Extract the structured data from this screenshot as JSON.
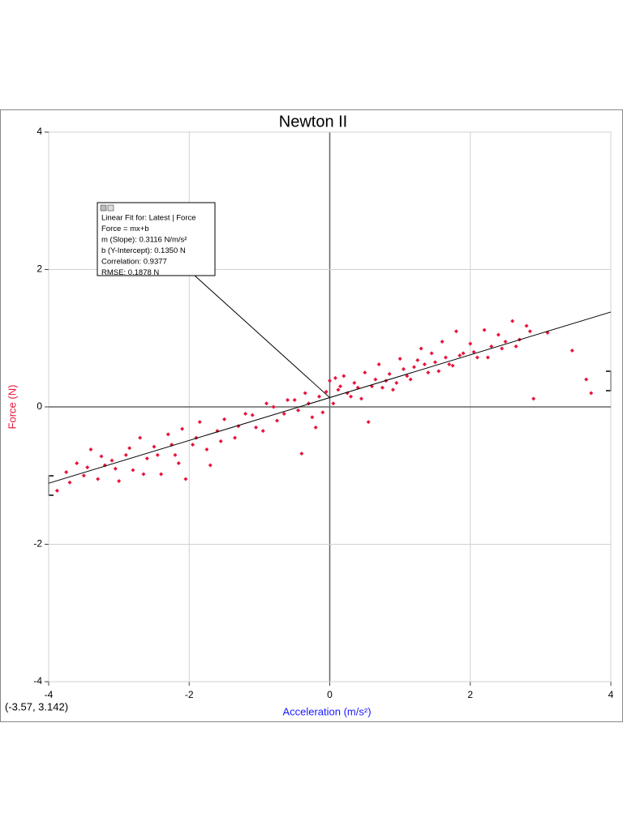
{
  "chart_data": {
    "type": "scatter",
    "title": "Newton II",
    "x_label": "Acceleration (m/s²)",
    "y_label": "Force (N)",
    "x": [
      -3.88,
      -3.75,
      -3.6,
      -3.5,
      -3.4,
      -3.3,
      -3.2,
      -3.1,
      -3.0,
      -2.9,
      -2.8,
      -2.7,
      -2.6,
      -2.5,
      -2.4,
      -2.3,
      -2.2,
      -2.1,
      -2.05,
      -1.95,
      -1.85,
      -1.75,
      -1.6,
      -1.5,
      -1.35,
      -1.2,
      -1.05,
      -0.9,
      -0.75,
      -0.6,
      -0.45,
      -0.4,
      -0.35,
      -0.25,
      -0.15,
      -0.1,
      0.0,
      0.05,
      0.12,
      0.2,
      0.3,
      0.4,
      0.5,
      0.55,
      0.6,
      0.7,
      0.8,
      0.9,
      1.0,
      1.1,
      1.2,
      1.3,
      1.4,
      1.5,
      1.6,
      1.7,
      1.8,
      1.9,
      2.0,
      2.1,
      2.2,
      2.3,
      2.4,
      2.5,
      2.6,
      2.7,
      2.8,
      2.9,
      3.1,
      3.45,
      3.65,
      3.72,
      -3.7,
      -3.45,
      -3.25,
      -3.05,
      -2.85,
      -2.65,
      -2.45,
      -2.25,
      -2.15,
      -1.9,
      -1.7,
      -1.55,
      -1.3,
      -1.1,
      -0.95,
      -0.8,
      -0.65,
      -0.5,
      -0.3,
      -0.2,
      -0.05,
      0.08,
      0.15,
      0.25,
      0.35,
      0.45,
      0.65,
      0.75,
      0.85,
      0.95,
      1.05,
      1.15,
      1.25,
      1.35,
      1.45,
      1.55,
      1.65,
      1.75,
      1.85,
      2.05,
      2.25,
      2.45,
      2.65,
      2.85
    ],
    "values": [
      -1.22,
      -0.95,
      -0.82,
      -1.0,
      -0.62,
      -1.05,
      -0.85,
      -0.78,
      -1.08,
      -0.7,
      -0.92,
      -0.45,
      -0.75,
      -0.58,
      -0.98,
      -0.4,
      -0.7,
      -0.32,
      -1.05,
      -0.55,
      -0.22,
      -0.62,
      -0.35,
      -0.18,
      -0.45,
      -0.1,
      -0.3,
      0.05,
      -0.2,
      0.1,
      -0.05,
      -0.68,
      0.2,
      -0.15,
      0.15,
      -0.08,
      0.38,
      0.05,
      0.25,
      0.45,
      0.15,
      0.28,
      0.5,
      -0.22,
      0.3,
      0.62,
      0.38,
      0.25,
      0.7,
      0.45,
      0.58,
      0.85,
      0.5,
      0.65,
      0.95,
      0.62,
      1.1,
      0.78,
      0.92,
      0.72,
      1.12,
      0.88,
      1.05,
      0.95,
      1.25,
      0.98,
      1.18,
      0.12,
      1.08,
      0.82,
      0.4,
      0.2,
      -1.1,
      -0.88,
      -0.72,
      -0.9,
      -0.6,
      -0.98,
      -0.7,
      -0.55,
      -0.82,
      -0.45,
      -0.85,
      -0.5,
      -0.28,
      -0.12,
      -0.35,
      0.0,
      -0.1,
      0.1,
      0.05,
      -0.3,
      0.22,
      0.42,
      0.3,
      0.2,
      0.35,
      0.12,
      0.4,
      0.28,
      0.48,
      0.35,
      0.55,
      0.4,
      0.68,
      0.62,
      0.78,
      0.52,
      0.72,
      0.6,
      0.75,
      0.8,
      0.72,
      0.85,
      0.88,
      1.1
    ],
    "color": "#e8143c",
    "xlim": [
      -4,
      4
    ],
    "ylim": [
      -4,
      4
    ],
    "xticks": [
      -4,
      -2,
      0,
      2,
      4
    ],
    "yticks": [
      -4,
      -2,
      0,
      2,
      4
    ],
    "grid": true,
    "fit": {
      "slope": 0.3116,
      "intercept": 0.135
    },
    "annotation": [
      "Linear Fit for: Latest | Force",
      "Force = mx+b",
      "m (Slope): 0.3116 N/m/s²",
      "b (Y-Intercept): 0.1350 N",
      "Correlation: 0.9377",
      "RMSE: 0.1878 N"
    ],
    "cursor_readout": "(-3.57, 3.142)"
  }
}
